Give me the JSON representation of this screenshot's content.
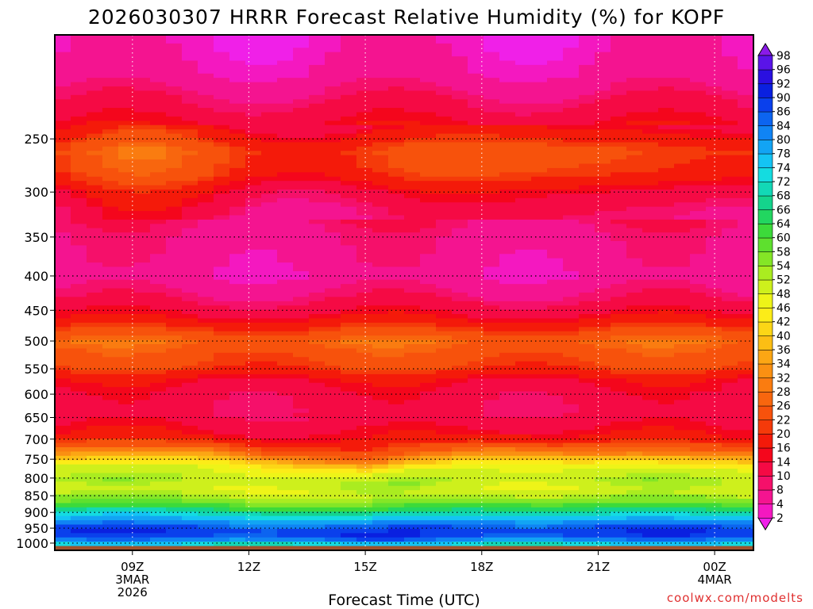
{
  "chart_data": {
    "type": "heatmap",
    "title": "2026030307 HRRR Forecast Relative Humidity (%) for KOPF",
    "xlabel": "Forecast Time (UTC)",
    "ylabel": "",
    "credit": "coolwx.com/modelts",
    "x_hours": [
      7,
      8,
      9,
      10,
      11,
      12,
      13,
      14,
      15,
      16,
      17,
      18,
      19,
      20,
      21,
      22,
      23,
      24,
      25
    ],
    "xlim": [
      7,
      25
    ],
    "x_ticks": [
      {
        "hour": 9,
        "lines": [
          "09Z",
          "3MAR",
          "2026"
        ]
      },
      {
        "hour": 12,
        "lines": [
          "12Z"
        ]
      },
      {
        "hour": 15,
        "lines": [
          "15Z"
        ]
      },
      {
        "hour": 18,
        "lines": [
          "18Z"
        ]
      },
      {
        "hour": 21,
        "lines": [
          "21Z"
        ]
      },
      {
        "hour": 24,
        "lines": [
          "00Z",
          "4MAR"
        ]
      }
    ],
    "y_ticks": [
      250,
      300,
      350,
      400,
      450,
      500,
      550,
      600,
      650,
      700,
      750,
      800,
      850,
      900,
      950,
      1000
    ],
    "ylim_hpa": [
      1025,
      175
    ],
    "colorbar": {
      "levels": [
        2,
        4,
        8,
        10,
        14,
        16,
        20,
        22,
        26,
        28,
        32,
        34,
        36,
        40,
        42,
        46,
        48,
        52,
        54,
        58,
        60,
        64,
        66,
        68,
        72,
        74,
        78,
        80,
        84,
        86,
        90,
        92,
        96,
        98
      ],
      "colors": [
        "#f020e8",
        "#f418c0",
        "#f41490",
        "#f5106a",
        "#f50a44",
        "#f4061c",
        "#f41a0a",
        "#f53a0a",
        "#f7520c",
        "#f8660e",
        "#fa7c10",
        "#fa9012",
        "#fca614",
        "#fcbe14",
        "#fcd616",
        "#fcec18",
        "#eef418",
        "#cef01c",
        "#aaec20",
        "#84e626",
        "#5ee02e",
        "#3cda3a",
        "#22d660",
        "#14d48c",
        "#12d8b6",
        "#14dce0",
        "#14c4f4",
        "#12a4f4",
        "#1084f4",
        "#0c64f0",
        "#0a40ec",
        "#0a20e0",
        "#2a10e0",
        "#5a14e8",
        "#8a1ae8"
      ]
    },
    "rh_profiles": [
      {
        "p": 180,
        "rh": 3
      },
      {
        "p": 200,
        "rh": 5
      },
      {
        "p": 220,
        "rh": 10
      },
      {
        "p": 240,
        "rh": 15
      },
      {
        "p": 260,
        "rh": 23
      },
      {
        "p": 280,
        "rh": 21
      },
      {
        "p": 300,
        "rh": 14
      },
      {
        "p": 320,
        "rh": 10
      },
      {
        "p": 350,
        "rh": 7
      },
      {
        "p": 380,
        "rh": 6
      },
      {
        "p": 400,
        "rh": 5
      },
      {
        "p": 430,
        "rh": 9
      },
      {
        "p": 460,
        "rh": 15
      },
      {
        "p": 480,
        "rh": 21
      },
      {
        "p": 500,
        "rh": 27
      },
      {
        "p": 520,
        "rh": 24
      },
      {
        "p": 545,
        "rh": 22
      },
      {
        "p": 570,
        "rh": 15
      },
      {
        "p": 600,
        "rh": 12
      },
      {
        "p": 640,
        "rh": 11
      },
      {
        "p": 690,
        "rh": 16
      },
      {
        "p": 720,
        "rh": 25
      },
      {
        "p": 750,
        "rh": 40
      },
      {
        "p": 770,
        "rh": 48
      },
      {
        "p": 800,
        "rh": 52
      },
      {
        "p": 830,
        "rh": 49
      },
      {
        "p": 860,
        "rh": 55
      },
      {
        "p": 880,
        "rh": 62
      },
      {
        "p": 900,
        "rh": 70
      },
      {
        "p": 920,
        "rh": 78
      },
      {
        "p": 945,
        "rh": 86
      },
      {
        "p": 965,
        "rh": 90
      },
      {
        "p": 985,
        "rh": 84
      },
      {
        "p": 1000,
        "rh": 74
      },
      {
        "p": 1010,
        "rh": 72
      }
    ],
    "moist_layer_top_hpa": [
      {
        "hour": 7,
        "p": 705
      },
      {
        "hour": 9,
        "p": 705
      },
      {
        "hour": 11,
        "p": 700
      },
      {
        "hour": 13,
        "p": 720
      },
      {
        "hour": 15,
        "p": 740
      },
      {
        "hour": 16,
        "p": 725
      },
      {
        "hour": 18,
        "p": 700
      },
      {
        "hour": 19,
        "p": 698
      },
      {
        "hour": 21,
        "p": 708
      },
      {
        "hour": 23,
        "p": 715
      },
      {
        "hour": 25,
        "p": 712
      }
    ],
    "below_ground_hpa": 1010
  }
}
